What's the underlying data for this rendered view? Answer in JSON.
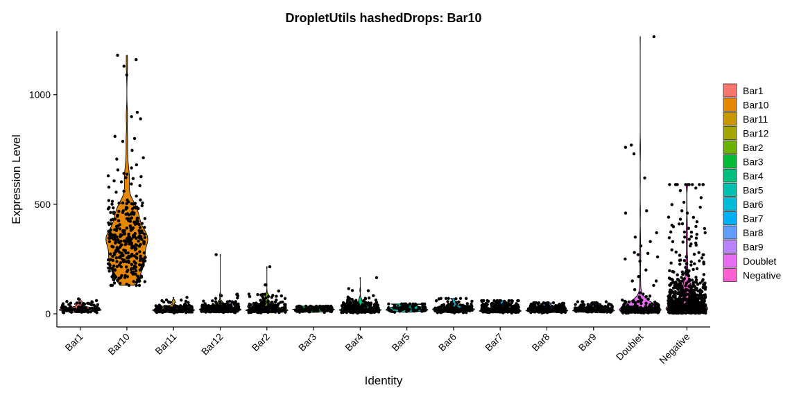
{
  "chart_data": {
    "type": "violin",
    "title": "DropletUtils hashedDrops: Bar10",
    "xlabel": "Identity",
    "ylabel": "Expression Level",
    "ylim": [
      -60,
      1290
    ],
    "yticks": [
      0,
      500,
      1000
    ],
    "categories": [
      "Bar1",
      "Bar10",
      "Bar11",
      "Bar12",
      "Bar2",
      "Bar3",
      "Bar4",
      "Bar5",
      "Bar6",
      "Bar7",
      "Bar8",
      "Bar9",
      "Doublet",
      "Negative"
    ],
    "colors": [
      "#F8766D",
      "#E58700",
      "#C99800",
      "#A3A500",
      "#6BB100",
      "#00BA38",
      "#00BF7D",
      "#00C0AF",
      "#00BCD8",
      "#00B0F6",
      "#619CFF",
      "#B983FF",
      "#E76BF3",
      "#FD61D1"
    ],
    "legend_position": "right",
    "grid": false,
    "series": [
      {
        "name": "Bar1",
        "n": 120,
        "min": 5,
        "q1": 15,
        "median": 22,
        "q3": 30,
        "max": 70,
        "outliers": [
          55,
          68
        ]
      },
      {
        "name": "Bar10",
        "n": 330,
        "min": 130,
        "q1": 250,
        "median": 320,
        "q3": 420,
        "max": 1180,
        "outliers": [
          1180,
          1160,
          1130,
          1090,
          900,
          890,
          920,
          810,
          800,
          680,
          630,
          200,
          150
        ]
      },
      {
        "name": "Bar11",
        "n": 180,
        "min": 3,
        "q1": 14,
        "median": 20,
        "q3": 28,
        "max": 75,
        "outliers": [
          60,
          75
        ]
      },
      {
        "name": "Bar12",
        "n": 220,
        "min": 3,
        "q1": 14,
        "median": 22,
        "q3": 30,
        "max": 270,
        "outliers": [
          270,
          90,
          70
        ]
      },
      {
        "name": "Bar2",
        "n": 220,
        "min": 3,
        "q1": 15,
        "median": 24,
        "q3": 35,
        "max": 215,
        "outliers": [
          215,
          90,
          80,
          70
        ]
      },
      {
        "name": "Bar3",
        "n": 100,
        "min": 5,
        "q1": 14,
        "median": 20,
        "q3": 26,
        "max": 35,
        "outliers": []
      },
      {
        "name": "Bar4",
        "n": 300,
        "min": 3,
        "q1": 14,
        "median": 22,
        "q3": 35,
        "max": 165,
        "outliers": [
          165,
          115,
          70
        ]
      },
      {
        "name": "Bar5",
        "n": 80,
        "min": 5,
        "q1": 15,
        "median": 25,
        "q3": 32,
        "max": 45,
        "outliers": []
      },
      {
        "name": "Bar6",
        "n": 160,
        "min": 3,
        "q1": 14,
        "median": 22,
        "q3": 30,
        "max": 70,
        "outliers": [
          68
        ]
      },
      {
        "name": "Bar7",
        "n": 240,
        "min": 3,
        "q1": 14,
        "median": 22,
        "q3": 32,
        "max": 60,
        "outliers": []
      },
      {
        "name": "Bar8",
        "n": 200,
        "min": 3,
        "q1": 14,
        "median": 20,
        "q3": 28,
        "max": 50,
        "outliers": []
      },
      {
        "name": "Bar9",
        "n": 180,
        "min": 3,
        "q1": 14,
        "median": 20,
        "q3": 28,
        "max": 55,
        "outliers": []
      },
      {
        "name": "Doublet",
        "n": 250,
        "min": 3,
        "q1": 12,
        "median": 18,
        "q3": 28,
        "max": 1265,
        "outliers": [
          1265,
          770,
          760,
          730,
          620,
          470,
          460,
          370,
          350,
          330,
          310,
          280,
          270,
          260,
          250,
          240,
          200,
          170,
          150,
          130,
          110,
          90
        ]
      },
      {
        "name": "Negative",
        "n": 800,
        "min": 3,
        "q1": 20,
        "median": 40,
        "q3": 100,
        "max": 590,
        "outliers": [
          590,
          530,
          470,
          460,
          440,
          420,
          410,
          390,
          370
        ]
      }
    ]
  }
}
